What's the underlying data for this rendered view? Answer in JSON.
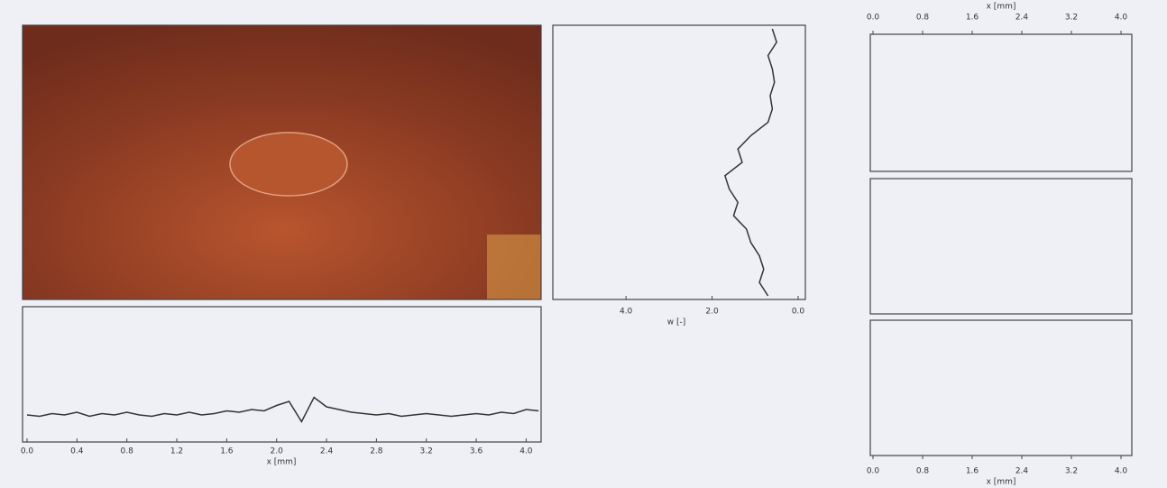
{
  "chart_data": [
    {
      "type": "line",
      "xlabel": "x [mm]",
      "xlim": [
        0,
        4.12
      ],
      "ylim": [
        0,
        1
      ],
      "xticks": [
        {
          "value": 0,
          "label": "0.0"
        },
        0.4,
        0.8,
        1.2,
        1.6,
        {
          "value": 2,
          "label": "2.0"
        },
        2.4,
        2.8,
        3.2,
        3.6,
        {
          "value": 4,
          "label": "4.0"
        }
      ],
      "x": [
        0,
        0.1,
        0.2,
        0.3,
        0.4,
        0.5,
        0.6,
        0.7,
        0.8,
        0.9,
        1,
        1.1,
        1.2,
        1.3,
        1.4,
        1.5,
        1.6,
        1.7,
        1.8,
        1.9,
        2,
        2.1,
        2.2,
        2.3,
        2.4,
        2.5,
        2.6,
        2.7,
        2.8,
        2.9,
        3,
        3.1,
        3.2,
        3.3,
        3.4,
        3.5,
        3.6,
        3.7,
        3.8,
        3.9,
        4,
        4.1
      ],
      "series": [
        {
          "color": "#333333",
          "values": [
            0.2,
            0.19,
            0.21,
            0.2,
            0.22,
            0.19,
            0.21,
            0.2,
            0.22,
            0.2,
            0.19,
            0.21,
            0.2,
            0.22,
            0.2,
            0.21,
            0.23,
            0.22,
            0.24,
            0.23,
            0.27,
            0.3,
            0.15,
            0.33,
            0.26,
            0.24,
            0.22,
            0.21,
            0.2,
            0.21,
            0.19,
            0.2,
            0.21,
            0.2,
            0.19,
            0.2,
            0.21,
            0.2,
            0.22,
            0.21,
            0.24,
            0.23
          ]
        }
      ]
    },
    {
      "type": "vline",
      "xlabel": "w [-]",
      "xlim": [
        5.7,
        0
      ],
      "ylim": [
        0,
        4
      ],
      "xticks": [
        {
          "value": 4,
          "label": "4.0"
        },
        {
          "value": 2,
          "label": "2.0"
        },
        {
          "value": 0,
          "label": "0.0"
        }
      ],
      "y": [
        0,
        0.2,
        0.4,
        0.6,
        0.8,
        1,
        1.2,
        1.4,
        1.6,
        1.8,
        2,
        2.2,
        2.4,
        2.6,
        2.8,
        3,
        3.2,
        3.4,
        3.6,
        3.8,
        4
      ],
      "series": [
        {
          "color": "#333333",
          "values": [
            0.6,
            0.5,
            0.7,
            0.6,
            0.55,
            0.65,
            0.6,
            0.7,
            1.1,
            1.4,
            1.3,
            1.7,
            1.6,
            1.4,
            1.5,
            1.2,
            1.1,
            0.9,
            0.8,
            0.9,
            0.7
          ]
        }
      ]
    },
    {
      "type": "heatmap",
      "xlabel": "x [mm]",
      "xlim": [
        0,
        4.0
      ],
      "xticks": [
        {
          "value": 0,
          "label": "0.0"
        },
        0.8,
        1.6,
        2.4,
        3.2,
        {
          "value": 4,
          "label": "4.0"
        }
      ]
    }
  ]
}
